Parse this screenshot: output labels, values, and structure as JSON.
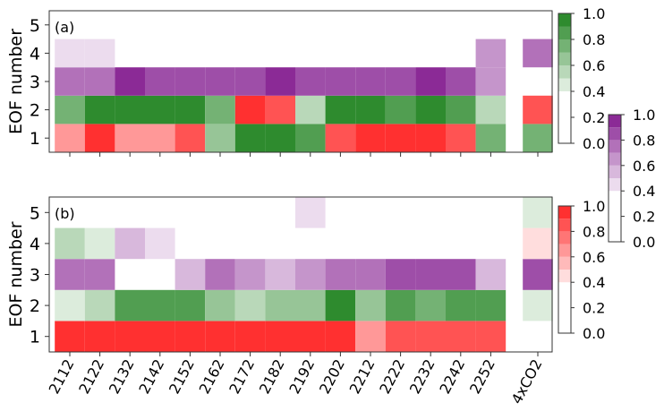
{
  "chart_data": [
    {
      "type": "heatmap",
      "panel_label": "(a)",
      "ylabel": "EOF number",
      "xlabel": "",
      "x_categories": [
        "2112",
        "2122",
        "2132",
        "2142",
        "2152",
        "2162",
        "2172",
        "2182",
        "2192",
        "2202",
        "2212",
        "2222",
        "2232",
        "2242",
        "2252",
        "4xCO2"
      ],
      "y_categories": [
        "1",
        "2",
        "3",
        "4",
        "5"
      ],
      "cells": {
        "5": [
          null,
          null,
          null,
          null,
          null,
          null,
          null,
          null,
          null,
          null,
          null,
          null,
          null,
          null,
          null,
          null
        ],
        "4": [
          {
            "c": "purple",
            "v": 0.5
          },
          {
            "c": "purple",
            "v": 0.5
          },
          null,
          null,
          null,
          null,
          null,
          null,
          null,
          null,
          null,
          null,
          null,
          null,
          {
            "c": "purple",
            "v": 0.62
          },
          {
            "c": "purple",
            "v": 0.75
          }
        ],
        "3": [
          {
            "c": "purple",
            "v": 0.72
          },
          {
            "c": "purple",
            "v": 0.72
          },
          {
            "c": "purple",
            "v": 0.96
          },
          {
            "c": "purple",
            "v": 0.82
          },
          {
            "c": "purple",
            "v": 0.82
          },
          {
            "c": "purple",
            "v": 0.82
          },
          {
            "c": "purple",
            "v": 0.85
          },
          {
            "c": "purple",
            "v": 0.95
          },
          {
            "c": "purple",
            "v": 0.85
          },
          {
            "c": "purple",
            "v": 0.85
          },
          {
            "c": "purple",
            "v": 0.85
          },
          {
            "c": "purple",
            "v": 0.85
          },
          {
            "c": "purple",
            "v": 0.96
          },
          {
            "c": "purple",
            "v": 0.85
          },
          {
            "c": "purple",
            "v": 0.62
          },
          null
        ],
        "2": [
          {
            "c": "green",
            "v": 0.78
          },
          {
            "c": "green",
            "v": 0.92
          },
          {
            "c": "green",
            "v": 0.92
          },
          {
            "c": "green",
            "v": 0.92
          },
          {
            "c": "green",
            "v": 0.92
          },
          {
            "c": "green",
            "v": 0.78
          },
          {
            "c": "red",
            "v": 0.97
          },
          {
            "c": "red",
            "v": 0.8
          },
          {
            "c": "green",
            "v": 0.55
          },
          {
            "c": "green",
            "v": 0.92
          },
          {
            "c": "green",
            "v": 0.92
          },
          {
            "c": "green",
            "v": 0.8
          },
          {
            "c": "green",
            "v": 0.92
          },
          {
            "c": "green",
            "v": 0.8
          },
          {
            "c": "green",
            "v": 0.55
          },
          {
            "c": "red",
            "v": 0.82
          }
        ],
        "1": [
          {
            "c": "red",
            "v": 0.65
          },
          {
            "c": "red",
            "v": 0.92
          },
          {
            "c": "red",
            "v": 0.65
          },
          {
            "c": "red",
            "v": 0.65
          },
          {
            "c": "red",
            "v": 0.8
          },
          {
            "c": "green",
            "v": 0.68
          },
          {
            "c": "green",
            "v": 0.95
          },
          {
            "c": "green",
            "v": 0.95
          },
          {
            "c": "green",
            "v": 0.8
          },
          {
            "c": "red",
            "v": 0.82
          },
          {
            "c": "red",
            "v": 0.92
          },
          {
            "c": "red",
            "v": 0.92
          },
          {
            "c": "red",
            "v": 0.92
          },
          {
            "c": "red",
            "v": 0.85
          },
          {
            "c": "green",
            "v": 0.78
          },
          {
            "c": "green",
            "v": 0.78
          }
        ]
      }
    },
    {
      "type": "heatmap",
      "panel_label": "(b)",
      "ylabel": "EOF number",
      "xlabel": "",
      "x_categories": [
        "2112",
        "2122",
        "2132",
        "2142",
        "2152",
        "2162",
        "2172",
        "2182",
        "2192",
        "2202",
        "2212",
        "2222",
        "2232",
        "2242",
        "2252",
        "4xCO2"
      ],
      "y_categories": [
        "1",
        "2",
        "3",
        "4",
        "5"
      ],
      "cells": {
        "5": [
          null,
          null,
          null,
          null,
          null,
          null,
          null,
          null,
          {
            "c": "purple",
            "v": 0.46
          },
          null,
          null,
          null,
          null,
          null,
          null,
          {
            "c": "green",
            "v": 0.45
          }
        ],
        "4": [
          {
            "c": "green",
            "v": 0.58
          },
          {
            "c": "green",
            "v": 0.48
          },
          {
            "c": "purple",
            "v": 0.6
          },
          {
            "c": "purple",
            "v": 0.46
          },
          null,
          null,
          null,
          null,
          null,
          null,
          null,
          null,
          null,
          null,
          null,
          {
            "c": "red",
            "v": 0.42
          }
        ],
        "3": [
          {
            "c": "purple",
            "v": 0.72
          },
          {
            "c": "purple",
            "v": 0.72
          },
          null,
          null,
          {
            "c": "purple",
            "v": 0.6
          },
          {
            "c": "purple",
            "v": 0.75
          },
          {
            "c": "purple",
            "v": 0.62
          },
          {
            "c": "purple",
            "v": 0.6
          },
          {
            "c": "purple",
            "v": 0.62
          },
          {
            "c": "purple",
            "v": 0.75
          },
          {
            "c": "purple",
            "v": 0.75
          },
          {
            "c": "purple",
            "v": 0.85
          },
          {
            "c": "purple",
            "v": 0.85
          },
          {
            "c": "purple",
            "v": 0.85
          },
          {
            "c": "purple",
            "v": 0.6
          },
          {
            "c": "purple",
            "v": 0.88
          }
        ],
        "2": [
          {
            "c": "green",
            "v": 0.45
          },
          {
            "c": "green",
            "v": 0.6
          },
          {
            "c": "green",
            "v": 0.8
          },
          {
            "c": "green",
            "v": 0.8
          },
          {
            "c": "green",
            "v": 0.8
          },
          {
            "c": "green",
            "v": 0.7
          },
          {
            "c": "green",
            "v": 0.6
          },
          {
            "c": "green",
            "v": 0.7
          },
          {
            "c": "green",
            "v": 0.7
          },
          {
            "c": "green",
            "v": 0.96
          },
          {
            "c": "green",
            "v": 0.7
          },
          {
            "c": "green",
            "v": 0.8
          },
          {
            "c": "green",
            "v": 0.72
          },
          {
            "c": "green",
            "v": 0.82
          },
          {
            "c": "green",
            "v": 0.82
          },
          {
            "c": "green",
            "v": 0.45
          }
        ],
        "1": [
          {
            "c": "red",
            "v": 0.95
          },
          {
            "c": "red",
            "v": 0.95
          },
          {
            "c": "red",
            "v": 0.95
          },
          {
            "c": "red",
            "v": 0.95
          },
          {
            "c": "red",
            "v": 0.95
          },
          {
            "c": "red",
            "v": 0.95
          },
          {
            "c": "red",
            "v": 0.95
          },
          {
            "c": "red",
            "v": 0.95
          },
          {
            "c": "red",
            "v": 0.95
          },
          {
            "c": "red",
            "v": 0.95
          },
          {
            "c": "red",
            "v": 0.7
          },
          {
            "c": "red",
            "v": 0.85
          },
          {
            "c": "red",
            "v": 0.85
          },
          {
            "c": "red",
            "v": 0.85
          },
          {
            "c": "red",
            "v": 0.85
          },
          null
        ]
      }
    }
  ],
  "colorbars": [
    {
      "name": "green",
      "ticks": [
        "0.0",
        "0.2",
        "0.4",
        "0.6",
        "0.8",
        "1.0"
      ],
      "color_low": "#ffffff",
      "color_high": "#2e8b2e"
    },
    {
      "name": "purple",
      "ticks": [
        "0.0",
        "0.2",
        "0.4",
        "0.6",
        "0.8",
        "1.0"
      ],
      "color_low": "#ffffff",
      "color_high": "#8b2a96"
    },
    {
      "name": "red",
      "ticks": [
        "0.0",
        "0.2",
        "0.4",
        "0.6",
        "0.8",
        "1.0"
      ],
      "color_low": "#ffffff",
      "color_high": "#ff3030"
    }
  ]
}
